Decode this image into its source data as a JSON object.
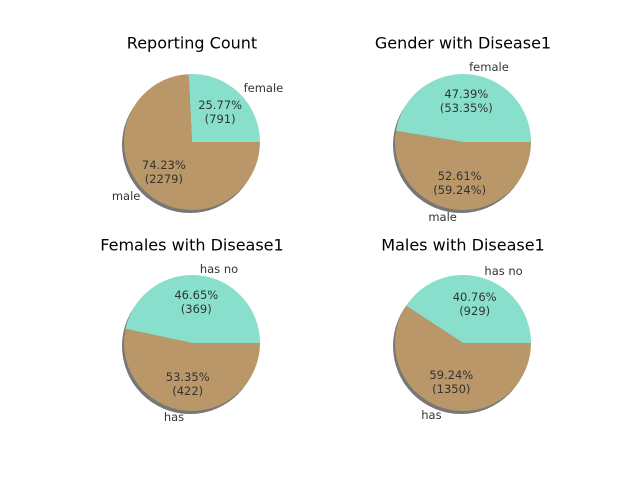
{
  "chart_data": [
    {
      "type": "pie",
      "title": "Reporting Count",
      "categories": [
        "female",
        "male"
      ],
      "values": [
        25.77,
        74.23
      ],
      "value_labels": [
        "25.77%\n(791)",
        "74.23%\n(2279)"
      ],
      "colors": [
        "#88dfcc",
        "#b99768"
      ]
    },
    {
      "type": "pie",
      "title": "Gender with Disease1",
      "categories": [
        "female",
        "male"
      ],
      "values": [
        47.39,
        52.61
      ],
      "value_labels": [
        "47.39%\n(53.35%)",
        "52.61%\n(59.24%)"
      ],
      "colors": [
        "#88dfcc",
        "#b99768"
      ]
    },
    {
      "type": "pie",
      "title": "Females with Disease1",
      "categories": [
        "has no",
        "has"
      ],
      "values": [
        46.65,
        53.35
      ],
      "value_labels": [
        "46.65%\n(369)",
        "53.35%\n(422)"
      ],
      "colors": [
        "#88dfcc",
        "#b99768"
      ]
    },
    {
      "type": "pie",
      "title": "Males with Disease1",
      "categories": [
        "has no",
        "has"
      ],
      "values": [
        40.76,
        59.24
      ],
      "value_labels": [
        "40.76%\n(929)",
        "59.24%\n(1350)"
      ],
      "colors": [
        "#88dfcc",
        "#b99768"
      ]
    }
  ]
}
